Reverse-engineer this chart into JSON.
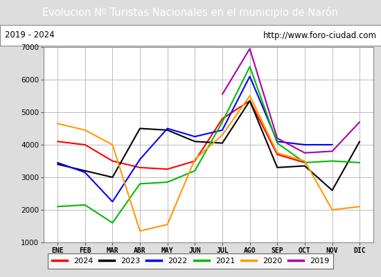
{
  "title": "Evolucion Nº Turistas Nacionales en el municipio de Narón",
  "subtitle_left": "2019 - 2024",
  "subtitle_right": "http://www.foro-ciudad.com",
  "months": [
    "ENE",
    "FEB",
    "MAR",
    "ABR",
    "MAY",
    "JUN",
    "JUL",
    "AGO",
    "SEP",
    "OCT",
    "NOV",
    "DIC"
  ],
  "ylim": [
    1000,
    7000
  ],
  "yticks": [
    1000,
    2000,
    3000,
    4000,
    5000,
    6000,
    7000
  ],
  "series": {
    "2024": {
      "color": "#ff0000",
      "values": [
        4100,
        4000,
        3500,
        3300,
        3250,
        3500,
        4800,
        5350,
        3700,
        3450,
        null,
        null
      ]
    },
    "2023": {
      "color": "#000000",
      "values": [
        3400,
        3200,
        3000,
        4500,
        4450,
        4100,
        4050,
        5350,
        3300,
        3350,
        2600,
        4100
      ]
    },
    "2022": {
      "color": "#0000ff",
      "values": [
        3450,
        3150,
        2250,
        3550,
        4500,
        4250,
        4450,
        6100,
        4100,
        4000,
        4000,
        null
      ]
    },
    "2021": {
      "color": "#00bb00",
      "values": [
        2100,
        2150,
        1600,
        2800,
        2850,
        3200,
        4700,
        6400,
        4050,
        3450,
        3500,
        3450
      ]
    },
    "2020": {
      "color": "#ff9900",
      "values": [
        4650,
        4450,
        4000,
        1350,
        1550,
        3550,
        4300,
        5500,
        3750,
        3500,
        2000,
        2100
      ]
    },
    "2019": {
      "color": "#aa00aa",
      "values": [
        null,
        null,
        null,
        null,
        null,
        null,
        5550,
        6950,
        4200,
        3750,
        3800,
        4700
      ]
    }
  },
  "title_bg_color": "#5599cc",
  "title_text_color": "#ffffff",
  "plot_bg_color": "#ffffff",
  "outer_bg_color": "#dddddd",
  "grid_color": "#bbbbbb",
  "subtitle_bg_color": "#ffffff",
  "subtitle_border_color": "#888888",
  "legend_border_color": "#444444"
}
